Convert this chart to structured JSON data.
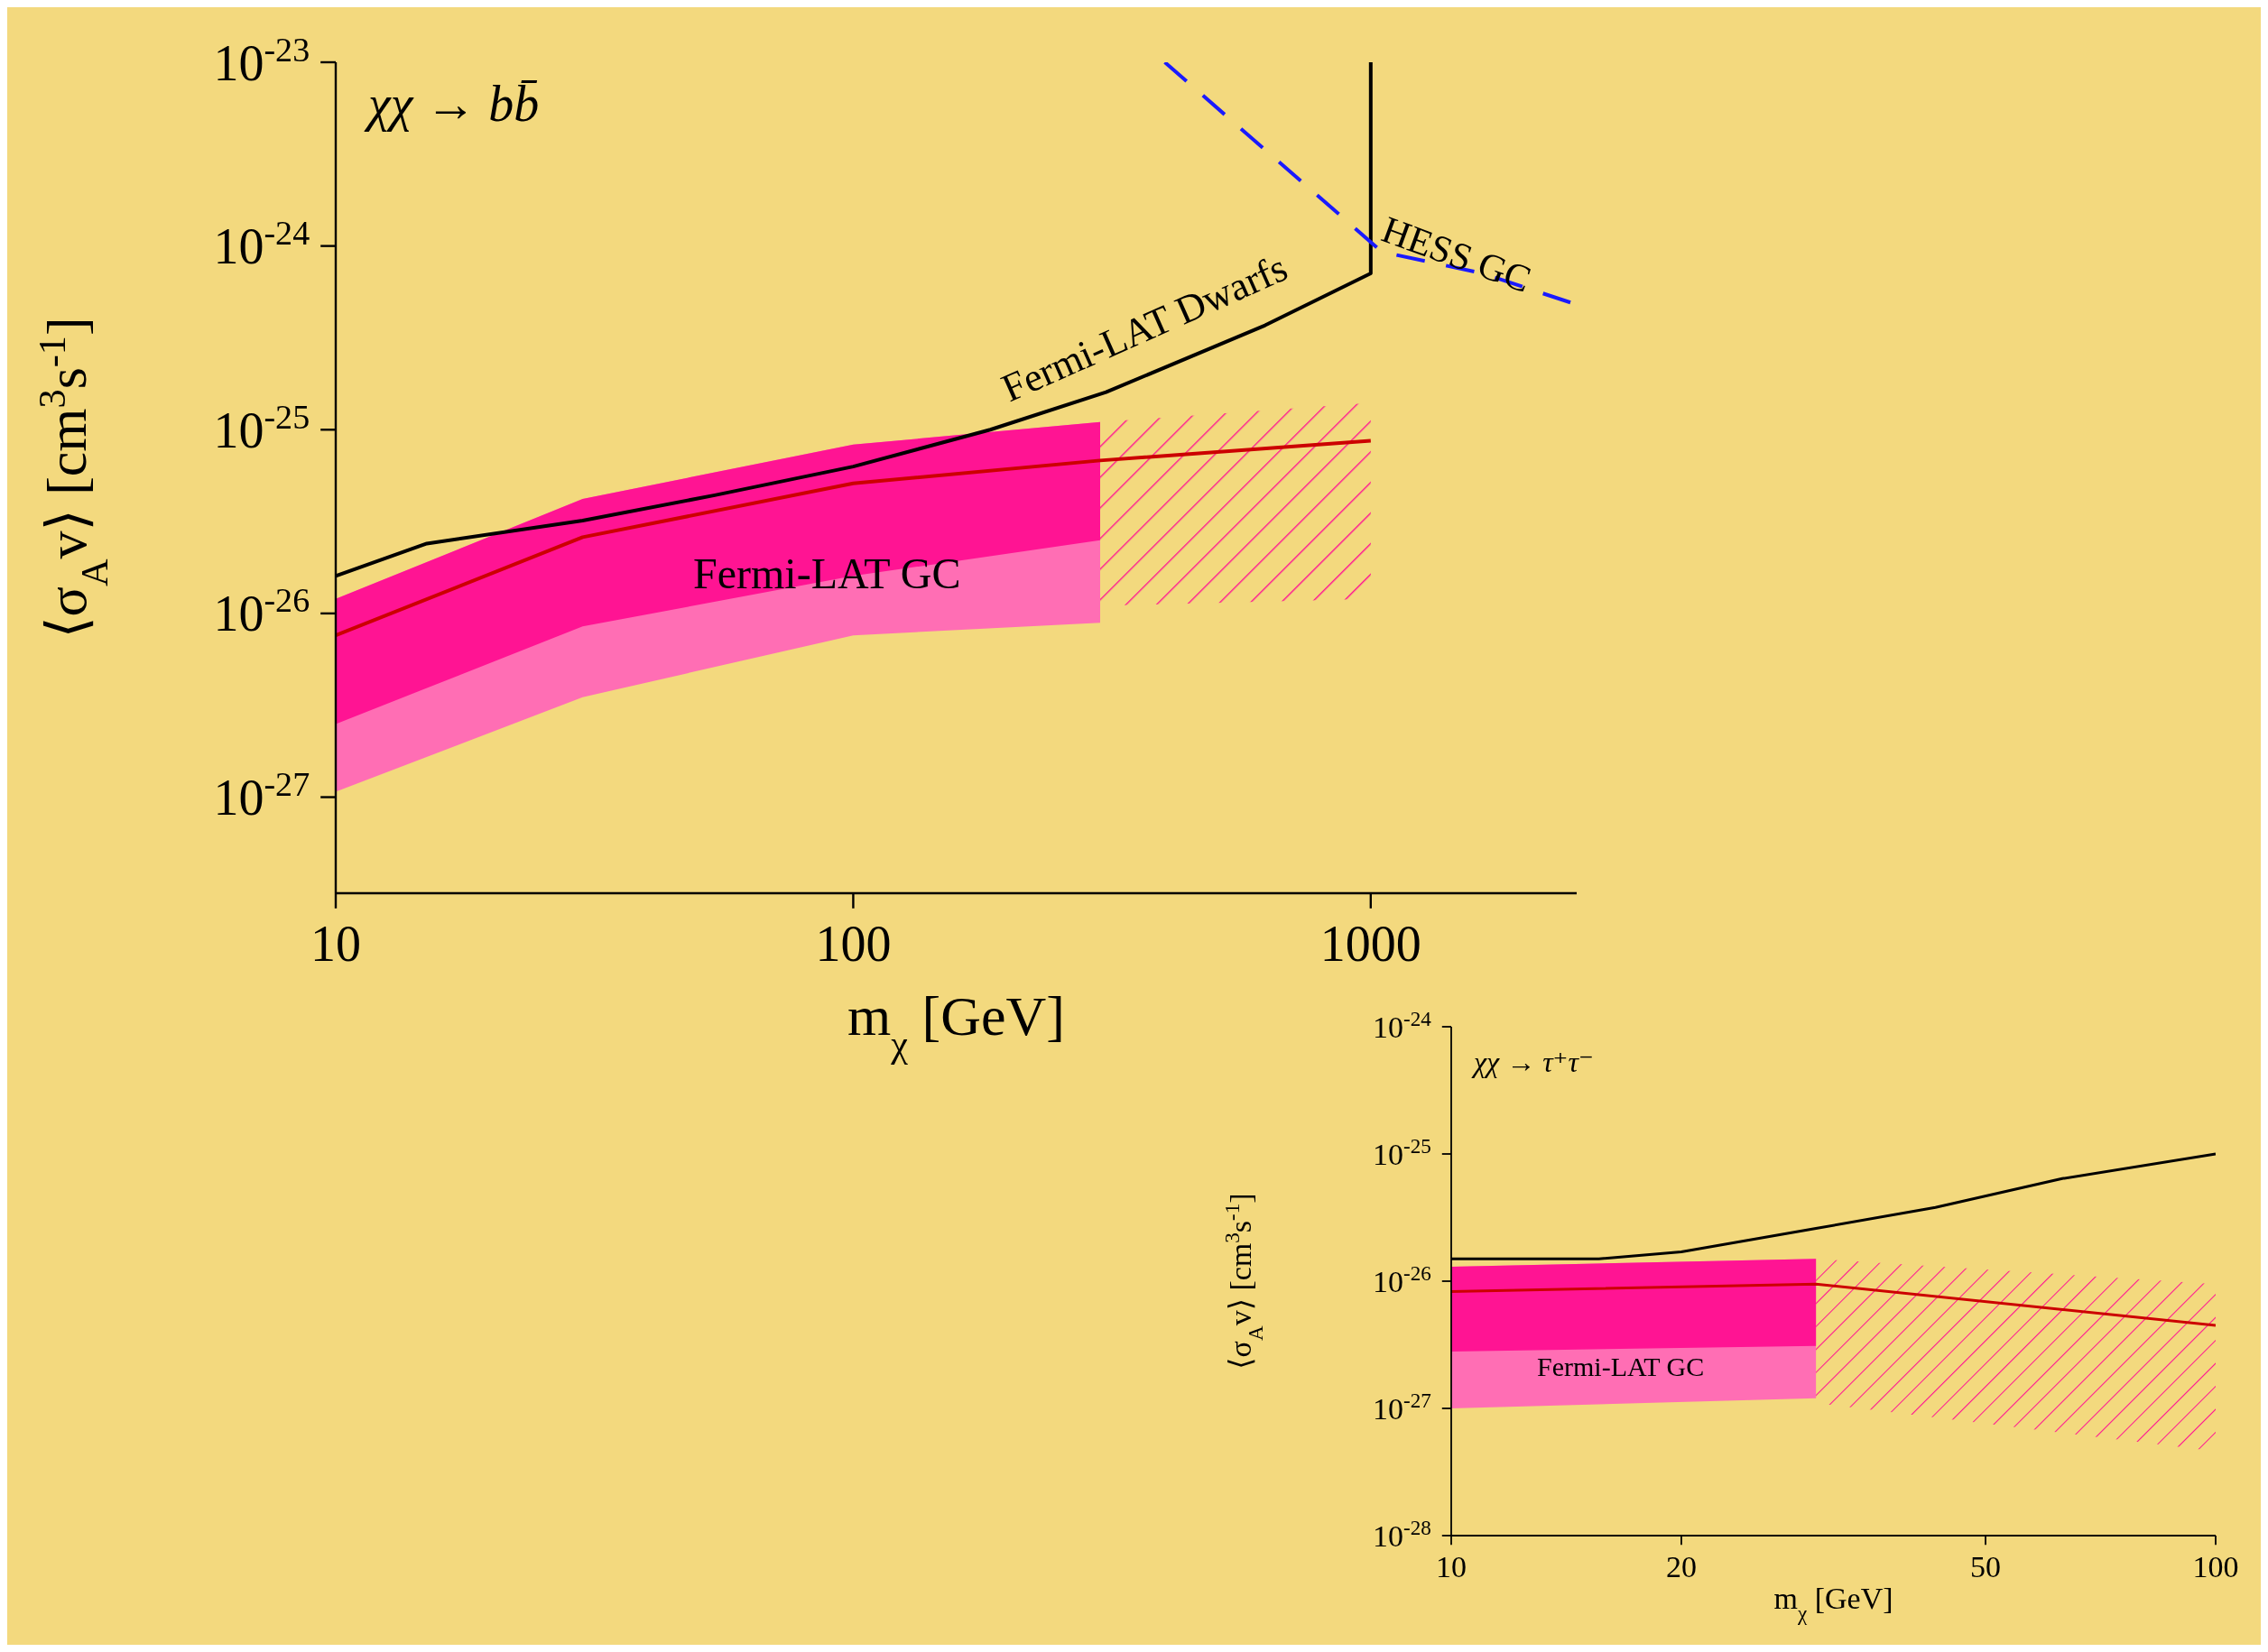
{
  "chart_data": [
    {
      "type": "line",
      "xlabel": "m$_{χ}$ [GeV]",
      "ylabel": "⟨σ$_{A}$v⟩ [cm$^{3}$s$^{-1}$]",
      "log": "xy",
      "xlim": [
        10,
        2500
      ],
      "ylim": [
        3e-28,
        1e-23
      ],
      "xticks": [
        10,
        100,
        1000
      ],
      "yticks": [
        {
          "value": 1e-27,
          "label": "10$^{-27}$"
        },
        {
          "value": 1e-26,
          "label": "10$^{-26}$"
        },
        {
          "value": 1e-25,
          "label": "10$^{-25}$"
        },
        {
          "value": 1e-24,
          "label": "10$^{-24}$"
        },
        {
          "value": 1e-23,
          "label": "10$^{-23}$"
        }
      ],
      "series": [
        {
          "color": "#ff6eb4",
          "x": [
            10,
            30,
            100,
            300
          ],
          "values": [
            null,
            null,
            null,
            null
          ],
          "lower": [
            1.07e-27,
            3.5e-27,
            7.6e-27,
            8.9e-27
          ],
          "upper": [
            1.2e-26,
            4.2e-26,
            8.3e-26,
            1.1e-25
          ]
        },
        {
          "color": "#ff1493",
          "x": [
            10,
            30,
            100,
            300
          ],
          "values": [
            null,
            null,
            null,
            null
          ],
          "lower": [
            2.5e-27,
            8.5e-27,
            1.6e-26,
            2.5e-26
          ],
          "upper": [
            1.2e-26,
            4.2e-26,
            8.3e-26,
            1.1e-25
          ]
        },
        {
          "color": "#ff1493",
          "line_style": "dashed",
          "x": [
            300,
            1000
          ],
          "values": [
            null,
            null
          ],
          "lower": [
            1.1e-26,
            1.2e-26
          ],
          "upper": [
            1.1e-25,
            1.4e-25
          ]
        },
        {
          "color": "#cc0000",
          "x": [
            10,
            30,
            100,
            300,
            1000
          ],
          "values": [
            7.6e-27,
            2.6e-26,
            5.1e-26,
            6.8e-26,
            8.7e-26
          ]
        },
        {
          "color": "#000000",
          "x": [
            10,
            15,
            30,
            54,
            100,
            184,
            308,
            625,
            1000,
            1000
          ],
          "values": [
            1.6e-26,
            2.4e-26,
            3.2e-26,
            4.4e-26,
            6.3e-26,
            1e-25,
            1.6e-25,
            3.7e-25,
            7.1e-25,
            1e-23
          ]
        },
        {
          "color": "#1a1aff",
          "line_style": "dashed",
          "x": [
            400,
            890,
            1050,
            1640,
            2500
          ],
          "values": [
            1e-23,
            1.4e-24,
            9.3e-25,
            7.1e-25,
            4.8e-25
          ]
        }
      ],
      "annotations": [
        "χχ → bb̄",
        "Fermi-LAT Dwarfs",
        "HESS GC",
        "Fermi-LAT GC"
      ],
      "grid": false,
      "legend": false
    },
    {
      "type": "line",
      "xlabel": "m$_{χ}$ [GeV]",
      "ylabel": "⟨σ$_{A}$v⟩ [cm$^{3}$s$^{-1}$]",
      "log": "xy",
      "xlim": [
        10,
        100
      ],
      "ylim": [
        1e-28,
        1e-24
      ],
      "xticks": [
        10,
        20,
        50,
        100
      ],
      "yticks": [
        {
          "value": 1e-28,
          "label": "10$^{-28}$"
        },
        {
          "value": 1e-27,
          "label": "10$^{-27}$"
        },
        {
          "value": 1e-26,
          "label": "10$^{-26}$"
        },
        {
          "value": 1e-25,
          "label": "10$^{-25}$"
        },
        {
          "value": 1e-24,
          "label": "10$^{-24}$"
        }
      ],
      "series": [
        {
          "color": "#ff6eb4",
          "x": [
            10,
            30
          ],
          "values": [
            null,
            null
          ],
          "lower": [
            1e-27,
            1.2e-27
          ],
          "upper": [
            1.3e-26,
            1.5e-26
          ]
        },
        {
          "color": "#ff1493",
          "x": [
            10,
            30
          ],
          "values": [
            null,
            null
          ],
          "lower": [
            2.8e-27,
            3.1e-27
          ],
          "upper": [
            1.3e-26,
            1.5e-26
          ]
        },
        {
          "color": "#ff1493",
          "line_style": "dashed",
          "x": [
            30,
            100
          ],
          "values": [
            null,
            null
          ],
          "lower": [
            1.1e-27,
            4.6e-28
          ],
          "upper": [
            1.5e-26,
            9.5e-27
          ]
        },
        {
          "color": "#cc0000",
          "x": [
            10,
            30,
            100
          ],
          "values": [
            8.3e-27,
            9.5e-27,
            4.5e-27
          ]
        },
        {
          "color": "#000000",
          "x": [
            10,
            15.6,
            20,
            30,
            43,
            63,
            100
          ],
          "values": [
            1.5e-26,
            1.5e-26,
            1.7e-26,
            2.6e-26,
            3.8e-26,
            6.4e-26,
            1e-25
          ]
        }
      ],
      "annotations": [
        "χχ → τ⁺τ⁻",
        "Fermi-LAT GC"
      ],
      "grid": false,
      "legend": false
    }
  ]
}
